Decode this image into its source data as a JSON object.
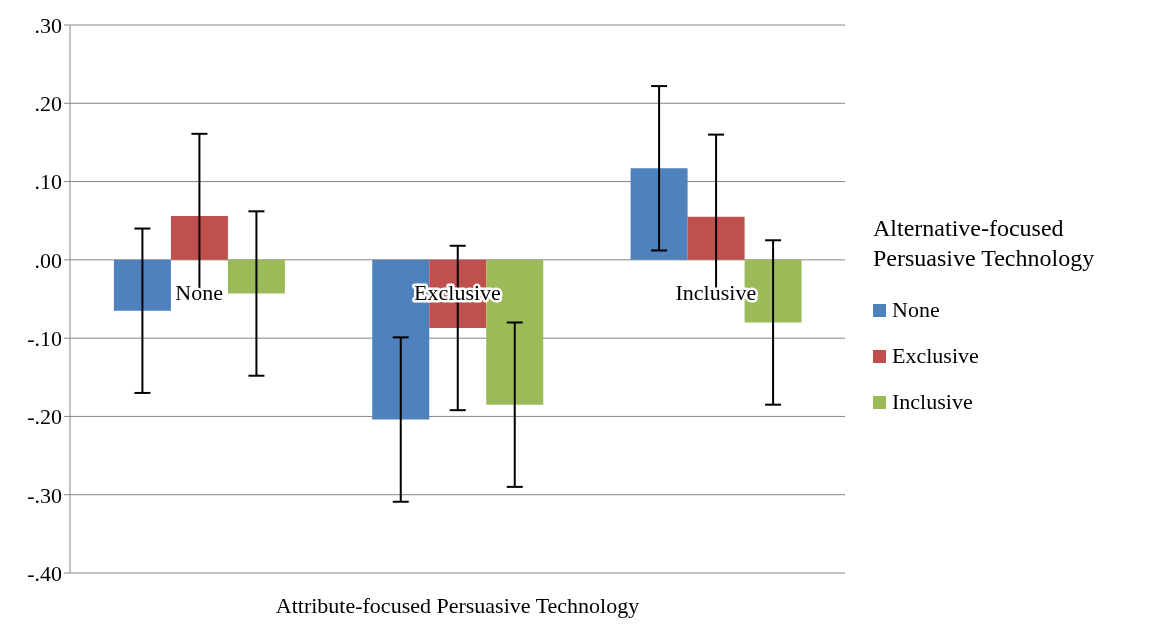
{
  "chart_data": {
    "type": "bar",
    "xlabel": "Attribute-focused Persuasive Technology",
    "legend_title": "Alternative-focused Persuasive Technology",
    "categories": [
      "None",
      "Exclusive",
      "Inclusive"
    ],
    "series": [
      {
        "name": "None",
        "color": "#4f81bd",
        "values": [
          -0.065,
          -0.204,
          0.117
        ],
        "errors": [
          0.105,
          0.105,
          0.105
        ]
      },
      {
        "name": "Exclusive",
        "color": "#c0504d",
        "values": [
          0.056,
          -0.087,
          0.055
        ],
        "errors": [
          0.105,
          0.105,
          0.105
        ]
      },
      {
        "name": "Inclusive",
        "color": "#9bbb59",
        "values": [
          -0.043,
          -0.185,
          -0.08
        ],
        "errors": [
          0.105,
          0.105,
          0.105
        ]
      }
    ],
    "ylim": [
      -0.4,
      0.3
    ],
    "yticks": [
      {
        "value": -0.4,
        "label": "-.40"
      },
      {
        "value": -0.3,
        "label": "-.30"
      },
      {
        "value": -0.2,
        "label": "-.20"
      },
      {
        "value": -0.1,
        "label": "-.10"
      },
      {
        "value": 0,
        "label": ".00"
      },
      {
        "value": 0.1,
        "label": ".10"
      },
      {
        "value": 0.2,
        "label": ".20"
      },
      {
        "value": 0.3,
        "label": ".30"
      }
    ],
    "grid": "y",
    "legend": "right"
  }
}
